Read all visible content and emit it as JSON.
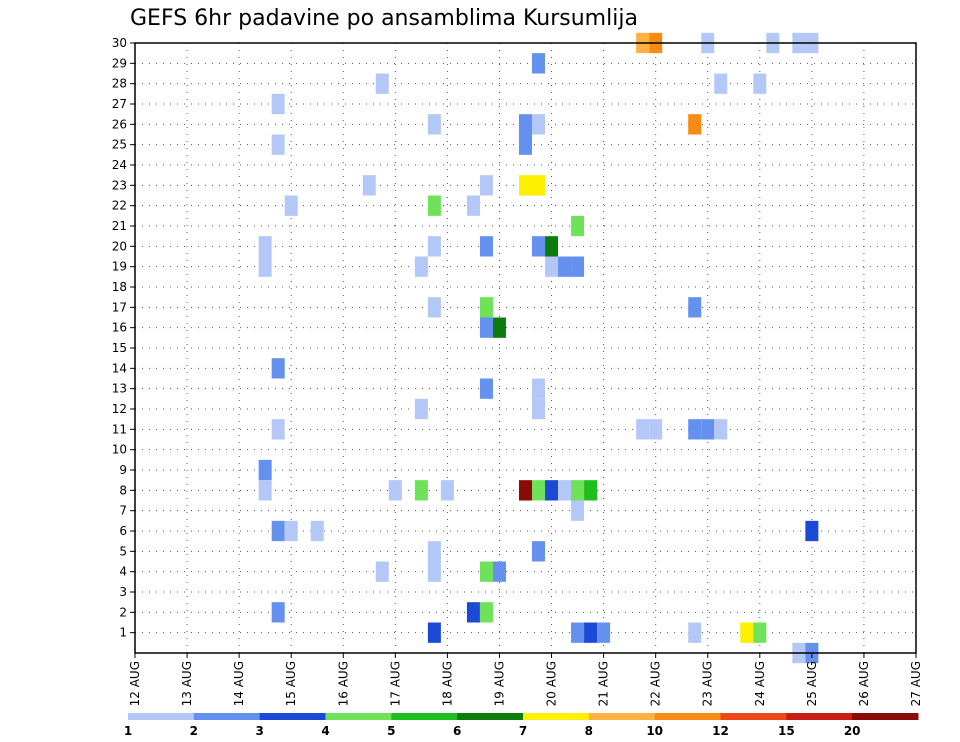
{
  "chart_data": {
    "type": "heatmap",
    "title": "GEFS 6hr padavine po ansamblima Kursumlija",
    "xlabel": "",
    "ylabel": "",
    "x_tick_labels": [
      "12 AUG",
      "13 AUG",
      "14 AUG",
      "15 AUG",
      "16 AUG",
      "17 AUG",
      "18 AUG",
      "19 AUG",
      "20 AUG",
      "21 AUG",
      "22 AUG",
      "23 AUG",
      "24 AUG",
      "25 AUG",
      "26 AUG",
      "27 AUG"
    ],
    "y_tick_labels": [
      "1",
      "2",
      "3",
      "4",
      "5",
      "6",
      "7",
      "8",
      "9",
      "10",
      "11",
      "12",
      "13",
      "14",
      "15",
      "16",
      "17",
      "18",
      "19",
      "20",
      "21",
      "22",
      "23",
      "24",
      "25",
      "26",
      "27",
      "28",
      "29",
      "30"
    ],
    "xlim_days": [
      0,
      15
    ],
    "ylim_members": [
      0,
      30
    ],
    "grid": true,
    "time_step_hours": 6,
    "legend_position": "bottom",
    "color_scale": [
      {
        "label": "1",
        "color": "#b4c8f8"
      },
      {
        "label": "2",
        "color": "#6491ee"
      },
      {
        "label": "3",
        "color": "#1b4ad6"
      },
      {
        "label": "4",
        "color": "#6fe25a"
      },
      {
        "label": "5",
        "color": "#1fbe1f"
      },
      {
        "label": "6",
        "color": "#0c7d0c"
      },
      {
        "label": "7",
        "color": "#fdf000"
      },
      {
        "label": "8",
        "color": "#fcb240"
      },
      {
        "label": "10",
        "color": "#f98a14"
      },
      {
        "label": "12",
        "color": "#ee4818"
      },
      {
        "label": "15",
        "color": "#c81e14"
      },
      {
        "label": "20",
        "color": "#8b0a06"
      }
    ],
    "cells": [
      {
        "member": 30,
        "day": 9.75,
        "bin": 7
      },
      {
        "member": 30,
        "day": 10,
        "bin": 8
      },
      {
        "member": 30,
        "day": 11,
        "bin": 0
      },
      {
        "member": 30,
        "day": 12.25,
        "bin": 0
      },
      {
        "member": 30,
        "day": 12.75,
        "bin": 0
      },
      {
        "member": 30,
        "day": 13,
        "bin": 0
      },
      {
        "member": 29,
        "day": 7.75,
        "bin": 1
      },
      {
        "member": 28,
        "day": 4.75,
        "bin": 0
      },
      {
        "member": 28,
        "day": 11.25,
        "bin": 0
      },
      {
        "member": 28,
        "day": 12,
        "bin": 0
      },
      {
        "member": 27,
        "day": 2.75,
        "bin": 0
      },
      {
        "member": 26,
        "day": 5.75,
        "bin": 0
      },
      {
        "member": 26,
        "day": 7.5,
        "bin": 1
      },
      {
        "member": 26,
        "day": 7.75,
        "bin": 0
      },
      {
        "member": 26,
        "day": 10.75,
        "bin": 8
      },
      {
        "member": 25,
        "day": 2.75,
        "bin": 0
      },
      {
        "member": 25,
        "day": 7.5,
        "bin": 1
      },
      {
        "member": 23,
        "day": 4.5,
        "bin": 0
      },
      {
        "member": 23,
        "day": 6.75,
        "bin": 0
      },
      {
        "member": 23,
        "day": 7.5,
        "bin": 6
      },
      {
        "member": 23,
        "day": 7.75,
        "bin": 6
      },
      {
        "member": 22,
        "day": 3,
        "bin": 0
      },
      {
        "member": 22,
        "day": 5.75,
        "bin": 3
      },
      {
        "member": 22,
        "day": 6.5,
        "bin": 0
      },
      {
        "member": 21,
        "day": 8.5,
        "bin": 3
      },
      {
        "member": 20,
        "day": 2.5,
        "bin": 0
      },
      {
        "member": 20,
        "day": 5.75,
        "bin": 0
      },
      {
        "member": 20,
        "day": 6.75,
        "bin": 1
      },
      {
        "member": 20,
        "day": 7.75,
        "bin": 1
      },
      {
        "member": 20,
        "day": 8,
        "bin": 5
      },
      {
        "member": 19,
        "day": 2.5,
        "bin": 0
      },
      {
        "member": 19,
        "day": 5.5,
        "bin": 0
      },
      {
        "member": 19,
        "day": 8,
        "bin": 0
      },
      {
        "member": 19,
        "day": 8.25,
        "bin": 1
      },
      {
        "member": 19,
        "day": 8.5,
        "bin": 1
      },
      {
        "member": 17,
        "day": 5.75,
        "bin": 0
      },
      {
        "member": 17,
        "day": 6.75,
        "bin": 3
      },
      {
        "member": 17,
        "day": 10.75,
        "bin": 1
      },
      {
        "member": 16,
        "day": 6.75,
        "bin": 1
      },
      {
        "member": 16,
        "day": 7,
        "bin": 5
      },
      {
        "member": 14,
        "day": 2.75,
        "bin": 1
      },
      {
        "member": 13,
        "day": 6.75,
        "bin": 1
      },
      {
        "member": 13,
        "day": 7.75,
        "bin": 0
      },
      {
        "member": 12,
        "day": 5.5,
        "bin": 0
      },
      {
        "member": 12,
        "day": 7.75,
        "bin": 0
      },
      {
        "member": 11,
        "day": 2.75,
        "bin": 0
      },
      {
        "member": 11,
        "day": 9.75,
        "bin": 0
      },
      {
        "member": 11,
        "day": 10,
        "bin": 0
      },
      {
        "member": 11,
        "day": 10.75,
        "bin": 1
      },
      {
        "member": 11,
        "day": 11,
        "bin": 1
      },
      {
        "member": 11,
        "day": 11.25,
        "bin": 0
      },
      {
        "member": 9,
        "day": 2.5,
        "bin": 1
      },
      {
        "member": 8,
        "day": 2.5,
        "bin": 0
      },
      {
        "member": 8,
        "day": 5,
        "bin": 0
      },
      {
        "member": 8,
        "day": 5.5,
        "bin": 3
      },
      {
        "member": 8,
        "day": 6,
        "bin": 0
      },
      {
        "member": 8,
        "day": 7.5,
        "bin": 11
      },
      {
        "member": 8,
        "day": 7.75,
        "bin": 3
      },
      {
        "member": 8,
        "day": 8,
        "bin": 2
      },
      {
        "member": 8,
        "day": 8.25,
        "bin": 0
      },
      {
        "member": 8,
        "day": 8.5,
        "bin": 3
      },
      {
        "member": 8,
        "day": 8.75,
        "bin": 4
      },
      {
        "member": 7,
        "day": 8.5,
        "bin": 0
      },
      {
        "member": 6,
        "day": 2.75,
        "bin": 1
      },
      {
        "member": 6,
        "day": 3,
        "bin": 0
      },
      {
        "member": 6,
        "day": 3.5,
        "bin": 0
      },
      {
        "member": 6,
        "day": 13,
        "bin": 2
      },
      {
        "member": 5,
        "day": 5.75,
        "bin": 0
      },
      {
        "member": 5,
        "day": 7.75,
        "bin": 1
      },
      {
        "member": 4,
        "day": 4.75,
        "bin": 0
      },
      {
        "member": 4,
        "day": 5.75,
        "bin": 0
      },
      {
        "member": 4,
        "day": 6.75,
        "bin": 3
      },
      {
        "member": 4,
        "day": 7,
        "bin": 1
      },
      {
        "member": 2,
        "day": 2.75,
        "bin": 1
      },
      {
        "member": 2,
        "day": 6.5,
        "bin": 2
      },
      {
        "member": 2,
        "day": 6.75,
        "bin": 3
      },
      {
        "member": 1,
        "day": 5.75,
        "bin": 2
      },
      {
        "member": 1,
        "day": 8.5,
        "bin": 1
      },
      {
        "member": 1,
        "day": 8.75,
        "bin": 2
      },
      {
        "member": 1,
        "day": 9,
        "bin": 1
      },
      {
        "member": 1,
        "day": 10.75,
        "bin": 0
      },
      {
        "member": 1,
        "day": 11.75,
        "bin": 6
      },
      {
        "member": 1,
        "day": 12,
        "bin": 3
      },
      {
        "member": 0,
        "day": 12.75,
        "bin": 0
      },
      {
        "member": 0,
        "day": 13,
        "bin": 1
      }
    ]
  }
}
